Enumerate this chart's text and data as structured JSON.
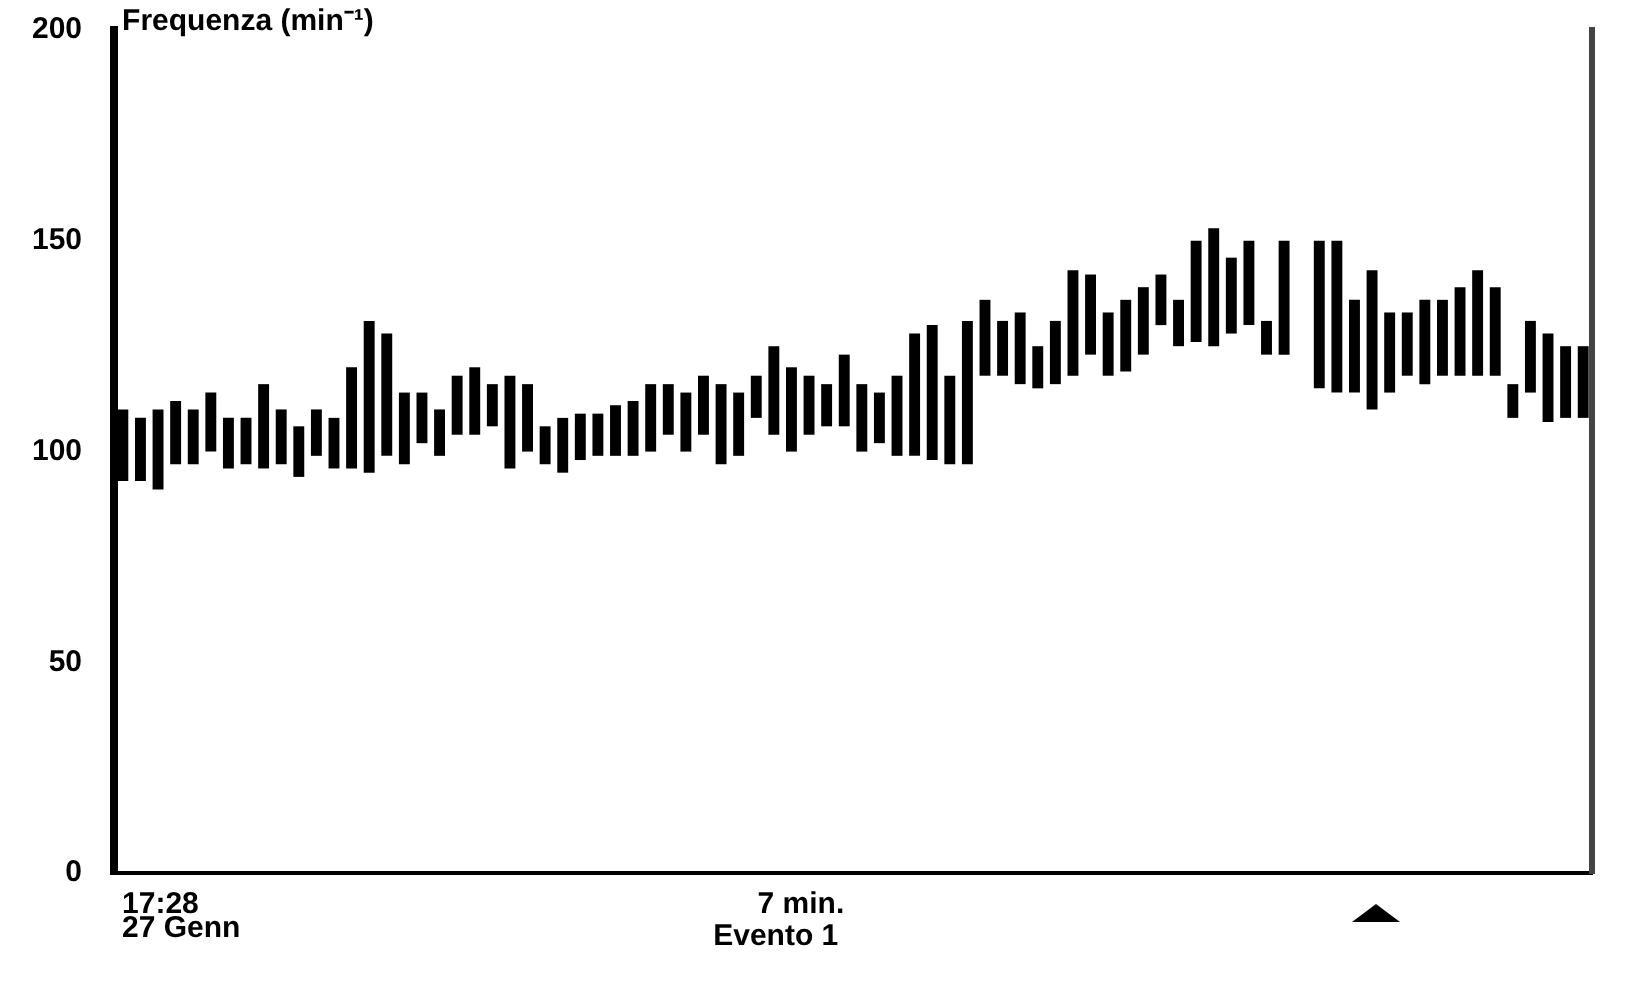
{
  "chart_data": {
    "type": "bar",
    "ylabel": "Frequenza (min⁻¹)",
    "categories": [
      null,
      null,
      null,
      null,
      null,
      null,
      null,
      null,
      null,
      null,
      null,
      null,
      null,
      null,
      null,
      null,
      null,
      null,
      null,
      null,
      null,
      null,
      null,
      null,
      null,
      null,
      null,
      null,
      null,
      null,
      null,
      null,
      null,
      null,
      null,
      null,
      null,
      null,
      null,
      null,
      null,
      null,
      null,
      null,
      null,
      null,
      null,
      null,
      null,
      null,
      null,
      null,
      null,
      null,
      null,
      null,
      null,
      null,
      null,
      null,
      null,
      null,
      null,
      null,
      null,
      null,
      null,
      null,
      null,
      null,
      null,
      null,
      null,
      null,
      null,
      null,
      null,
      null,
      null,
      null,
      null,
      null,
      null,
      null
    ],
    "base": [
      93,
      93,
      91,
      97,
      97,
      100,
      96,
      97,
      96,
      97,
      94,
      99,
      96,
      96,
      95,
      99,
      97,
      102,
      99,
      104,
      104,
      106,
      96,
      100,
      97,
      95,
      98,
      99,
      99,
      99,
      100,
      104,
      100,
      104,
      97,
      99,
      108,
      104,
      100,
      104,
      106,
      106,
      100,
      102,
      99,
      99,
      98,
      97,
      97,
      118,
      118,
      116,
      115,
      116,
      118,
      123,
      118,
      119,
      123,
      130,
      125,
      126,
      125,
      128,
      130,
      123,
      123,
      null,
      115,
      114,
      114,
      110,
      114,
      118,
      116,
      118,
      118,
      118,
      118,
      108,
      114,
      107,
      108,
      108
    ],
    "values": [
      17,
      15,
      19,
      15,
      13,
      14,
      12,
      11,
      20,
      13,
      12,
      11,
      12,
      24,
      36,
      29,
      17,
      12,
      11,
      14,
      16,
      10,
      22,
      16,
      9,
      13,
      11,
      10,
      12,
      13,
      16,
      12,
      14,
      14,
      19,
      15,
      10,
      21,
      20,
      14,
      10,
      17,
      16,
      12,
      19,
      29,
      32,
      21,
      34,
      18,
      13,
      17,
      10,
      15,
      25,
      19,
      15,
      17,
      16,
      12,
      11,
      24,
      28,
      18,
      20,
      8,
      27,
      null,
      35,
      36,
      22,
      33,
      19,
      15,
      20,
      18,
      21,
      25,
      21,
      8,
      17,
      21,
      17,
      17
    ],
    "color": "#000000",
    "ylim": [
      0,
      200
    ],
    "yticks": [
      0,
      50,
      100,
      150,
      200
    ],
    "grid": false,
    "legend": false,
    "annotations": [
      "17:28",
      "27 Genn",
      "7 min.",
      "Evento 1"
    ]
  }
}
